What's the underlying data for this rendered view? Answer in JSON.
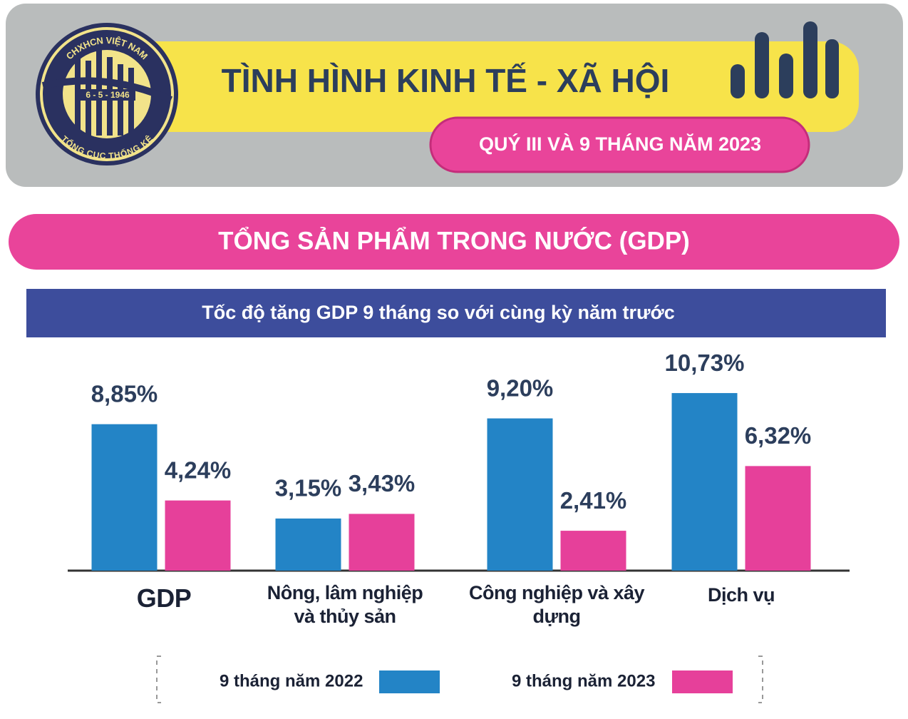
{
  "header": {
    "logo": {
      "top": "CHXHCN VIỆT NAM",
      "date": "6 - 5 - 1946",
      "bottom": "TỔNG CỤC THỐNG KÊ"
    },
    "title": "TÌNH HÌNH KINH TẾ - XÃ HỘI",
    "subtitle": "QUÝ III VÀ 9 THÁNG NĂM 2023"
  },
  "section_title": "TỔNG SẢN PHẨM TRONG NƯỚC (GDP)",
  "chart_data": {
    "type": "bar",
    "title": "Tốc độ tăng GDP 9 tháng so với cùng kỳ năm trước",
    "categories": [
      "GDP",
      "Nông, lâm nghiệp và thủy sản",
      "Công nghiệp và xây dựng",
      "Dịch vụ"
    ],
    "series": [
      {
        "name": "9 tháng năm 2022",
        "color": "#2384c6",
        "values": [
          8.85,
          3.15,
          9.2,
          10.73
        ],
        "value_labels": [
          "8,85%",
          "3,15%",
          "9,20%",
          "10,73%"
        ]
      },
      {
        "name": "9 tháng năm 2023",
        "color": "#e6409a",
        "values": [
          4.24,
          3.43,
          2.41,
          6.32
        ],
        "value_labels": [
          "4,24%",
          "3,43%",
          "2,41%",
          "6,32%"
        ]
      }
    ]
  }
}
